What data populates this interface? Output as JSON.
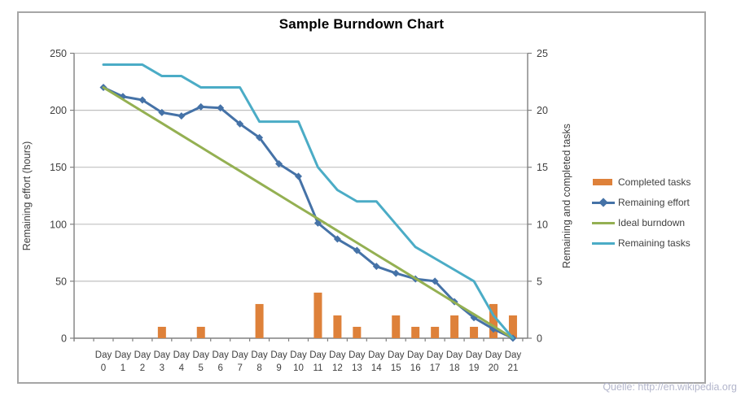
{
  "title": "Sample Burndown Chart",
  "source_note": "Quelle: http://en.wikipedia.org",
  "colors": {
    "completed_tasks": "#de813a",
    "remaining_effort": "#4572a7",
    "ideal_burndown": "#94b052",
    "remaining_tasks": "#4bacc6",
    "gridline": "#c0c0c0",
    "axis_line": "#808080",
    "tick_label": "#3f3f3f",
    "frame_border": "#a6a6a6",
    "source_text": "#b3b6cc"
  },
  "legend": {
    "items": [
      {
        "label": "Completed tasks",
        "swatch": "bar",
        "color": "#de813a"
      },
      {
        "label": "Remaining effort",
        "swatch": "line-diamond",
        "color": "#4572a7"
      },
      {
        "label": "Ideal burndown",
        "swatch": "line",
        "color": "#94b052"
      },
      {
        "label": "Remaining tasks",
        "swatch": "line",
        "color": "#4bacc6"
      }
    ]
  },
  "chart_data": {
    "type": "combo",
    "title": "Sample Burndown Chart",
    "x_label_prefix": "Day",
    "categories": [
      "0",
      "1",
      "2",
      "3",
      "4",
      "5",
      "6",
      "7",
      "8",
      "9",
      "10",
      "11",
      "12",
      "13",
      "14",
      "15",
      "16",
      "17",
      "18",
      "19",
      "20",
      "21"
    ],
    "left_axis": {
      "title": "Remaining effort (hours)",
      "min": 0,
      "max": 250,
      "step": 50,
      "tick_labels": [
        "0",
        "50",
        "100",
        "150",
        "200",
        "250"
      ]
    },
    "right_axis": {
      "title": "Remaining and completed tasks",
      "min": 0,
      "max": 25,
      "step": 5,
      "tick_labels": [
        "0",
        "5",
        "10",
        "15",
        "20",
        "25"
      ]
    },
    "grid": true,
    "legend_position": "right",
    "series": [
      {
        "name": "Completed tasks",
        "type": "bar",
        "axis": "right",
        "color": "#de813a",
        "values": [
          0,
          0,
          0,
          1,
          0,
          1,
          0,
          0,
          3,
          0,
          0,
          4,
          2,
          1,
          0,
          2,
          1,
          1,
          2,
          1,
          3,
          2
        ]
      },
      {
        "name": "Remaining effort",
        "type": "line",
        "axis": "left",
        "color": "#4572a7",
        "marker": "diamond",
        "values": [
          220,
          212,
          209,
          198,
          195,
          203,
          202,
          188,
          176,
          153,
          142,
          101,
          87,
          77,
          63,
          57,
          52,
          50,
          32,
          18,
          8,
          0
        ]
      },
      {
        "name": "Ideal burndown",
        "type": "line",
        "axis": "left",
        "color": "#94b052",
        "marker": "none",
        "values": [
          220,
          209.5,
          199,
          188.6,
          178.1,
          167.6,
          157.1,
          146.7,
          136.2,
          125.7,
          115.2,
          104.8,
          94.3,
          83.8,
          73.3,
          62.9,
          52.4,
          41.9,
          31.4,
          21,
          10.5,
          0
        ]
      },
      {
        "name": "Remaining tasks",
        "type": "line",
        "axis": "right",
        "color": "#4bacc6",
        "marker": "none",
        "values": [
          24,
          24,
          24,
          23,
          23,
          22,
          22,
          22,
          19,
          19,
          19,
          15,
          13,
          12,
          12,
          10,
          8,
          7,
          6,
          5,
          2,
          0
        ]
      }
    ]
  }
}
